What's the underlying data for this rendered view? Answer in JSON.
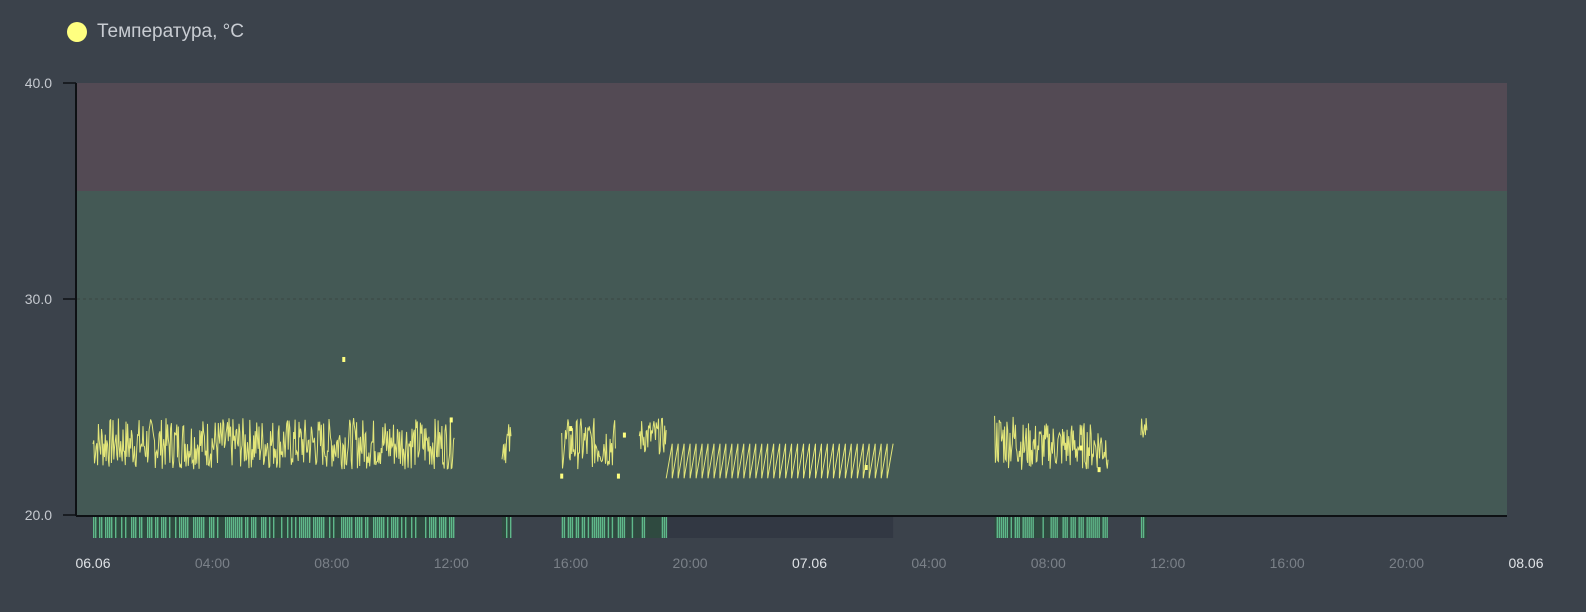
{
  "chart_data": {
    "type": "line",
    "title": "",
    "legend": {
      "label": "Температура, °C",
      "color": "#ffff80",
      "placement": "top-left"
    },
    "ylim": [
      20,
      40
    ],
    "y_ticks": [
      "40.0",
      "30.0",
      "20.0"
    ],
    "x_ticks": [
      {
        "label": "06.06",
        "hour": 0,
        "major": true
      },
      {
        "label": "04:00",
        "hour": 4,
        "major": false
      },
      {
        "label": "08:00",
        "hour": 8,
        "major": false
      },
      {
        "label": "12:00",
        "hour": 12,
        "major": false
      },
      {
        "label": "16:00",
        "hour": 16,
        "major": false
      },
      {
        "label": "20:00",
        "hour": 20,
        "major": false
      },
      {
        "label": "07.06",
        "hour": 24,
        "major": true
      },
      {
        "label": "04:00",
        "hour": 28,
        "major": false
      },
      {
        "label": "08:00",
        "hour": 32,
        "major": false
      },
      {
        "label": "12:00",
        "hour": 36,
        "major": false
      },
      {
        "label": "16:00",
        "hour": 40,
        "major": false
      },
      {
        "label": "20:00",
        "hour": 44,
        "major": false
      },
      {
        "label": "08.06",
        "hour": 48,
        "major": true
      }
    ],
    "x_range_hours": [
      0,
      48
    ],
    "zones": [
      {
        "name": "alarm",
        "from": 35,
        "to": 40,
        "color": "#534a54"
      },
      {
        "name": "normal",
        "from": 20,
        "to": 35,
        "color": "#445955"
      }
    ],
    "segments": [
      {
        "start": 0.0,
        "end": 12.1,
        "min": 21.7,
        "max": 24.5
      },
      {
        "start": 13.7,
        "end": 14.0,
        "min": 22.0,
        "max": 24.3
      },
      {
        "start": 15.7,
        "end": 17.5,
        "min": 21.7,
        "max": 24.5
      },
      {
        "start": 18.3,
        "end": 19.2,
        "min": 22.5,
        "max": 24.5
      },
      {
        "start": 19.2,
        "end": 26.8,
        "min": 21.7,
        "max": 23.3
      },
      {
        "start": 30.2,
        "end": 31.0,
        "min": 21.7,
        "max": 24.8
      },
      {
        "start": 31.0,
        "end": 34.0,
        "min": 21.7,
        "max": 24.3
      },
      {
        "start": 35.1,
        "end": 35.3,
        "min": 23.2,
        "max": 24.5
      }
    ],
    "outliers": [
      {
        "h": 8.4,
        "v": 27.2
      },
      {
        "h": 12.0,
        "v": 24.4
      },
      {
        "h": 15.7,
        "v": 21.8
      },
      {
        "h": 16.0,
        "v": 24.0
      },
      {
        "h": 17.8,
        "v": 23.7
      },
      {
        "h": 17.6,
        "v": 21.8
      },
      {
        "h": 25.9,
        "v": 22.2
      },
      {
        "h": 33.7,
        "v": 22.1
      },
      {
        "h": 33.1,
        "v": 23.1
      }
    ],
    "activity_bar": {
      "dark_span": [
        19.2,
        26.8
      ],
      "green_spans": [
        [
          0,
          12.1
        ],
        [
          13.7,
          14.0
        ],
        [
          15.7,
          19.2
        ],
        [
          30.2,
          31.0
        ],
        [
          31.0,
          34.0
        ],
        [
          35.1,
          35.3
        ]
      ]
    }
  },
  "colors": {
    "background": "#3b424b",
    "series": "#ffff80",
    "activity_green": "#5fb88a",
    "activity_dark": "#323843",
    "axis": "#0e1114",
    "grid": "#3a4744",
    "tick_major": "#dfe2e6",
    "tick_minor": "#7a8088"
  }
}
